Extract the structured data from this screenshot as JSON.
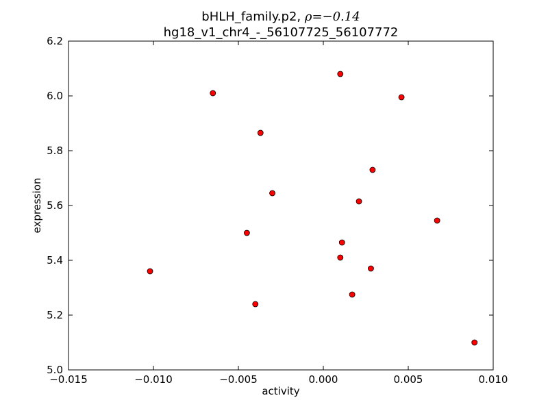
{
  "chart_data": {
    "type": "scatter",
    "title_line1": "bHLH_family.p2, ",
    "title_rho": "ρ=−0.14",
    "title_line2": "hg18_v1_chr4_-_56107725_56107772",
    "xlabel": "activity",
    "ylabel": "expression",
    "xlim": [
      -0.015,
      0.01
    ],
    "ylim": [
      5.0,
      6.2
    ],
    "xticks": [
      -0.015,
      -0.01,
      -0.005,
      0.0,
      0.005,
      0.01
    ],
    "xtick_labels": [
      "−0.015",
      "−0.010",
      "−0.005",
      "0.000",
      "0.005",
      "0.010"
    ],
    "yticks": [
      5.0,
      5.2,
      5.4,
      5.6,
      5.8,
      6.0,
      6.2
    ],
    "ytick_labels": [
      "5.0",
      "5.2",
      "5.4",
      "5.6",
      "5.8",
      "6.0",
      "6.2"
    ],
    "grid": false,
    "marker_color": "#ff0000",
    "marker_edge": "#000000",
    "points": [
      {
        "x": -0.0102,
        "y": 5.36
      },
      {
        "x": -0.0065,
        "y": 6.01
      },
      {
        "x": -0.0045,
        "y": 5.5
      },
      {
        "x": -0.004,
        "y": 5.24
      },
      {
        "x": -0.0037,
        "y": 5.865
      },
      {
        "x": -0.003,
        "y": 5.645
      },
      {
        "x": 0.001,
        "y": 6.08
      },
      {
        "x": 0.001,
        "y": 5.41
      },
      {
        "x": 0.0011,
        "y": 5.465
      },
      {
        "x": 0.0017,
        "y": 5.275
      },
      {
        "x": 0.0021,
        "y": 5.615
      },
      {
        "x": 0.0028,
        "y": 5.37
      },
      {
        "x": 0.0029,
        "y": 5.73
      },
      {
        "x": 0.0046,
        "y": 5.995
      },
      {
        "x": 0.0067,
        "y": 5.545
      },
      {
        "x": 0.0089,
        "y": 5.1
      }
    ]
  }
}
